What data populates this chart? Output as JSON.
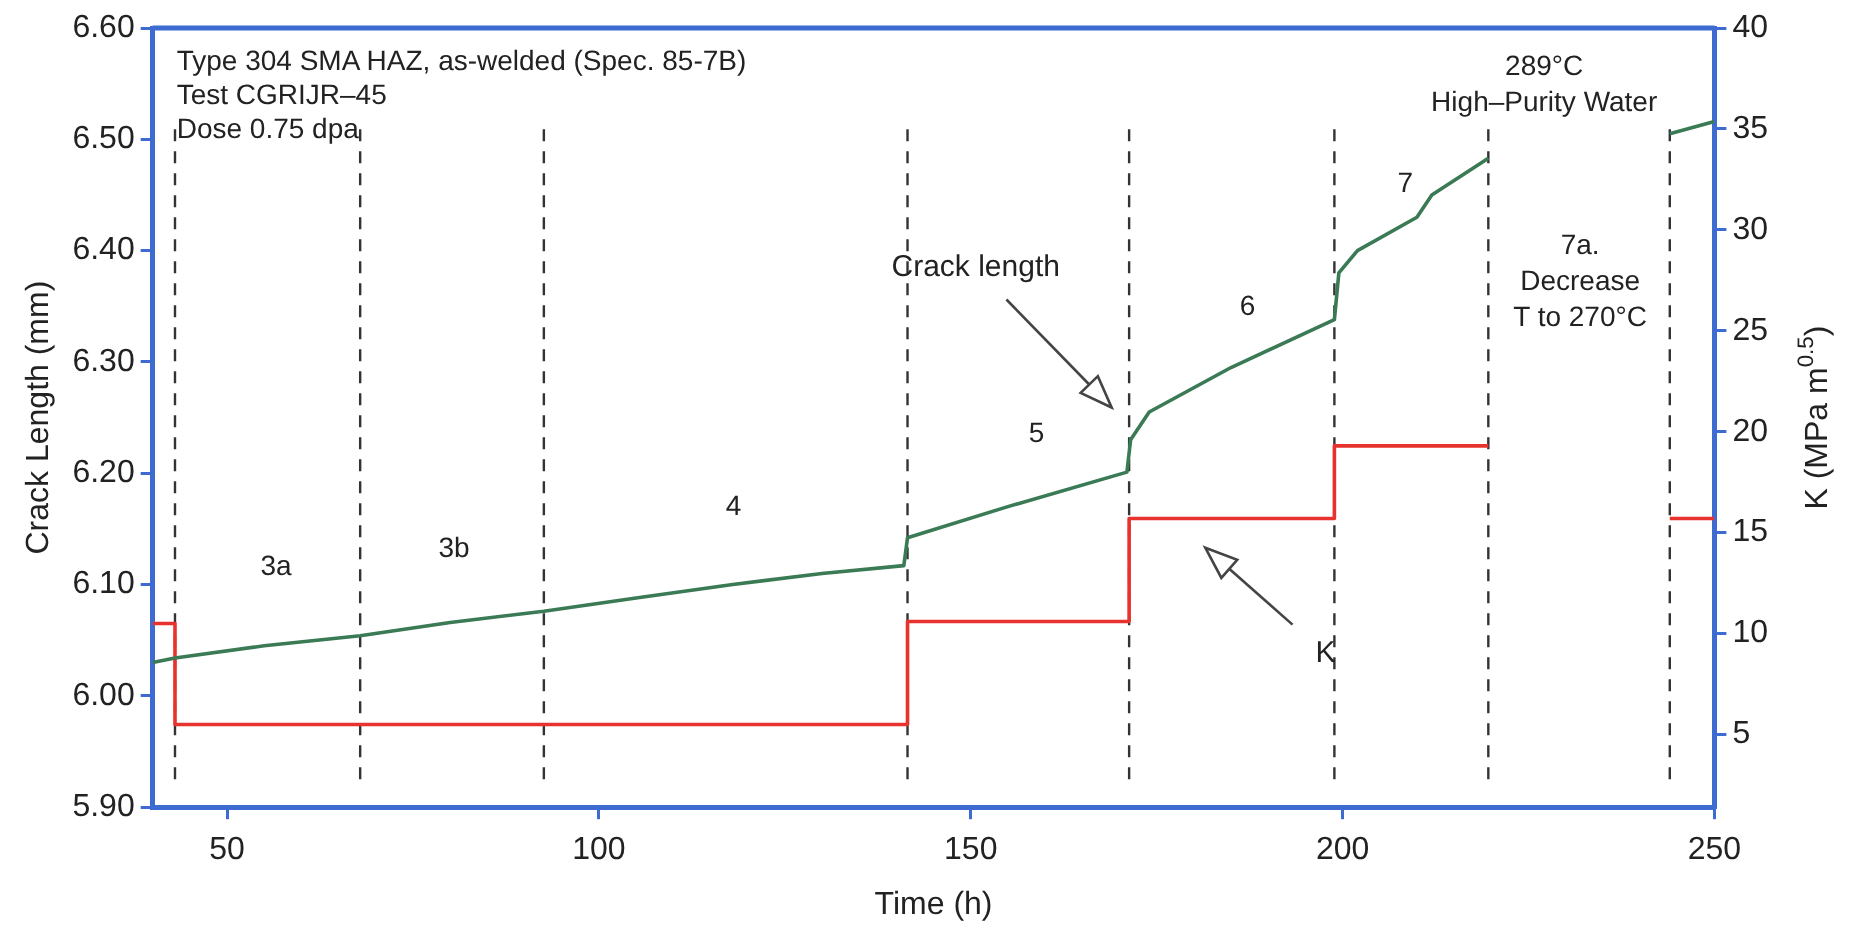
{
  "chart_data": {
    "type": "line",
    "xlabel": "Time (h)",
    "ylabel": "Crack Length (mm)",
    "y2label": "K (MPa m$^{0.5}$)",
    "xlim": [
      40,
      250
    ],
    "xticks": [
      50,
      100,
      150,
      200,
      250
    ],
    "ylim": [
      5.9,
      6.6
    ],
    "yticks": [
      {
        "value": 5.9,
        "label": "5.90"
      },
      {
        "value": 6.0,
        "label": "6.00"
      },
      {
        "value": 6.1,
        "label": "6.10"
      },
      {
        "value": 6.2,
        "label": "6.20"
      },
      {
        "value": 6.3,
        "label": "6.30"
      },
      {
        "value": 6.4,
        "label": "6.40"
      },
      {
        "value": 6.5,
        "label": "6.50"
      },
      {
        "value": 6.6,
        "label": "6.60"
      }
    ],
    "y2lim": [
      1.4,
      40
    ],
    "y2ticks": [
      5,
      10,
      15,
      20,
      25,
      30,
      35,
      40
    ],
    "grid": false,
    "legend": false,
    "marker": "none",
    "line_style": "solid",
    "series": [
      {
        "type": "line",
        "color": "#3a7a55",
        "x": [
          40,
          43,
          55,
          67.9,
          80,
          92.6,
          105,
          118,
          130,
          141,
          141.5,
          155,
          171,
          171.5,
          174,
          185,
          198.9,
          199.5,
          202,
          210,
          212,
          219.6,
          230,
          244,
          250
        ],
        "values": [
          6.03,
          6.034,
          6.045,
          6.054,
          6.066,
          6.076,
          6.088,
          6.1,
          6.11,
          6.117,
          6.142,
          6.17,
          6.201,
          6.23,
          6.255,
          6.295,
          6.338,
          6.38,
          6.4,
          6.43,
          6.45,
          6.483,
          null,
          6.505,
          6.516
        ]
      },
      {
        "type": "step",
        "axis": "y2",
        "color": "#e8322e",
        "x": [
          40,
          43,
          141.5,
          171.3,
          198.9,
          219.6,
          230,
          244,
          250
        ],
        "values": [
          10.5,
          5.5,
          10.6,
          15.7,
          19.3,
          19.3,
          null,
          15.7,
          15.7
        ]
      }
    ],
    "ref_lines": [
      {
        "axis": "x",
        "value": 43,
        "color": "#333333",
        "line_style": "dashed"
      },
      {
        "axis": "x",
        "value": 67.9,
        "color": "#333333",
        "line_style": "dashed"
      },
      {
        "axis": "x",
        "value": 92.6,
        "color": "#333333",
        "line_style": "dashed"
      },
      {
        "axis": "x",
        "value": 141.5,
        "color": "#333333",
        "line_style": "dashed"
      },
      {
        "axis": "x",
        "value": 171.3,
        "color": "#333333",
        "line_style": "dashed"
      },
      {
        "axis": "x",
        "value": 198.9,
        "color": "#333333",
        "line_style": "dashed"
      },
      {
        "axis": "x",
        "value": 219.6,
        "color": "#333333",
        "line_style": "dashed"
      },
      {
        "axis": "x",
        "value": 244,
        "color": "#333333",
        "line_style": "dashed"
      }
    ],
    "annotations": [
      "Type 304 SMA HAZ, as-welded (Spec. 85-7B)\nTest CGRIJR–45\nDose 0.75 dpa",
      "3a",
      "3b",
      "4",
      "5",
      "6",
      "7",
      "7a.\nDecrease\nT to 270°C",
      "289°C\nHigh–Purity Water",
      "Crack length",
      "K"
    ]
  }
}
